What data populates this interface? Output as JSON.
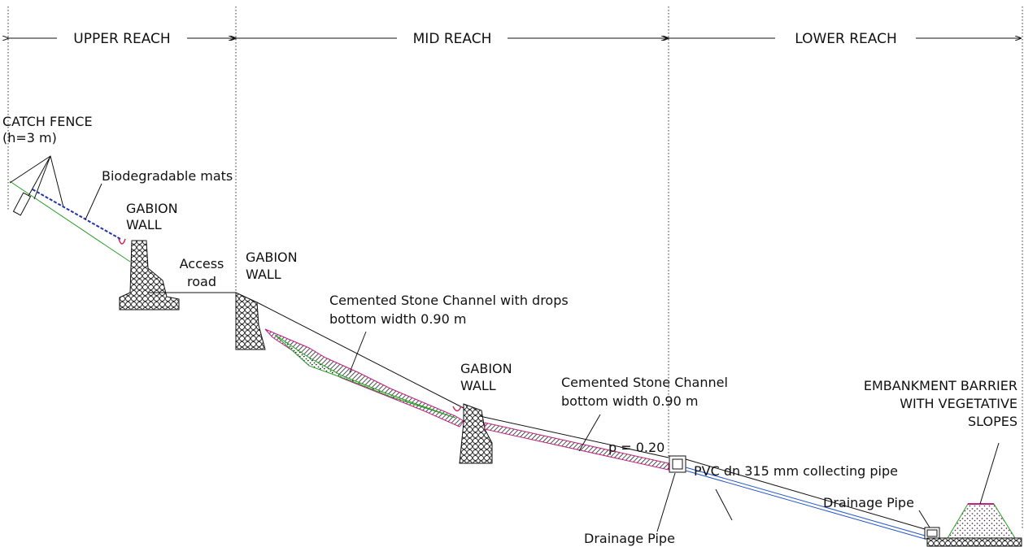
{
  "reaches": [
    "UPPER REACH",
    "MID REACH",
    "LOWER REACH"
  ],
  "labels": {
    "catch_fence": [
      "CATCH FENCE",
      "(h=3 m)"
    ],
    "mats": [
      "Biodegradable mats"
    ],
    "gabion_1": [
      "GABION",
      "WALL"
    ],
    "access_road": [
      "Access",
      "road"
    ],
    "gabion_2": [
      "GABION",
      "WALL"
    ],
    "channel_drops": [
      "Cemented Stone Channel with drops",
      "bottom width 0.90 m"
    ],
    "gabion_3": [
      "GABION",
      "WALL"
    ],
    "channel": [
      "Cemented Stone Channel",
      "bottom width 0.90 m"
    ],
    "slope": [
      "p = 0.20"
    ],
    "pvc_pipe": [
      "PVC dn 315 mm collecting pipe"
    ],
    "drainage_1": [
      "Drainage Pipe"
    ],
    "drainage_2": [
      "Drainage Pipe"
    ],
    "embankment": [
      "EMBANKMENT BARRIER",
      "WITH VEGETATIVE",
      "SLOPES"
    ]
  }
}
